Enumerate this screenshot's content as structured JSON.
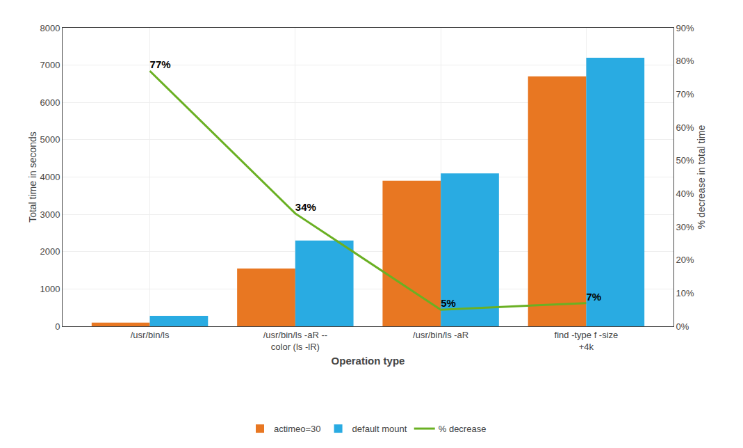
{
  "chart_data": {
    "type": "bar",
    "xlabel": "Operation type",
    "ylabel": "Total time in seconds",
    "y2label": "% decrease in total time",
    "categories": [
      "/usr/bin/ls",
      "/usr/bin/ls -aR --\ncolor (ls -lR)",
      "/usr/bin/ls -aR",
      "find -type f -size\n+4k"
    ],
    "series": [
      {
        "name": "actimeo=30",
        "type": "bar",
        "color": "#E87722",
        "values": [
          100,
          1550,
          3900,
          6700
        ]
      },
      {
        "name": "default mount",
        "type": "bar",
        "color": "#29ABE2",
        "values": [
          280,
          2300,
          4100,
          7200
        ]
      },
      {
        "name": "% decrease",
        "type": "line",
        "axis": "y2",
        "color": "#6AB023",
        "data_labels": true,
        "values": [
          0.77,
          0.34,
          0.05,
          0.07
        ],
        "value_labels": [
          "77%",
          "34%",
          "5%",
          "7%"
        ]
      }
    ],
    "ylim": [
      0,
      8000
    ],
    "yticks": [
      0,
      1000,
      2000,
      3000,
      4000,
      5000,
      6000,
      7000,
      8000
    ],
    "y2lim": [
      0,
      0.9
    ],
    "y2ticks": [
      {
        "value": 0.0,
        "label": "0%"
      },
      {
        "value": 0.1,
        "label": "10%"
      },
      {
        "value": 0.2,
        "label": "20%"
      },
      {
        "value": 0.3,
        "label": "30%"
      },
      {
        "value": 0.4,
        "label": "40%"
      },
      {
        "value": 0.5,
        "label": "50%"
      },
      {
        "value": 0.6,
        "label": "60%"
      },
      {
        "value": 0.7,
        "label": "70%"
      },
      {
        "value": 0.8,
        "label": "80%"
      },
      {
        "value": 0.9,
        "label": "90%"
      }
    ],
    "grid": true,
    "legend": "bottom"
  }
}
